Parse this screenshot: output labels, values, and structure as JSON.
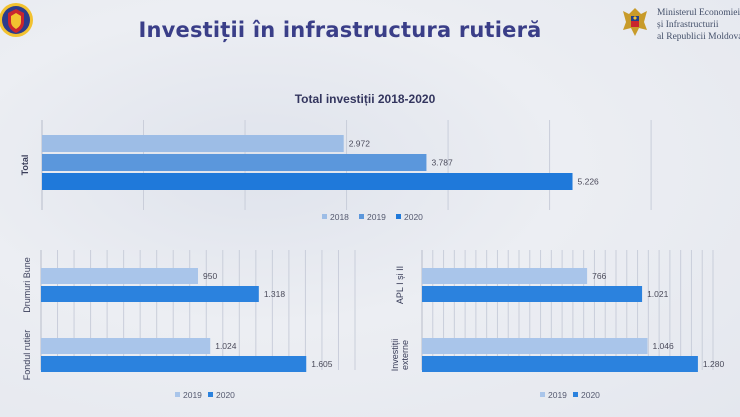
{
  "slide": {
    "title": "Investiții în infrastructura rutieră",
    "ministry_lines": [
      "Ministerul Economiei",
      "și Infrastructurii",
      "al Republicii Moldova"
    ],
    "logo_left": "moldova-police-emblem-icon",
    "logo_right": "moldova-coat-of-arms-icon"
  },
  "colors": {
    "2018": "#9dbde6",
    "2019": "#5b97dc",
    "2020": "#1f79da",
    "small_2019": "#a9c5ea",
    "small_2020": "#2b82de",
    "title": "#3a3e88"
  },
  "chart_data": [
    {
      "type": "bar",
      "orientation": "horizontal",
      "title": "Total investiții 2018-2020",
      "categories": [
        "Total"
      ],
      "series": [
        {
          "name": "2018",
          "values": [
            2.972
          ],
          "label": "2.972"
        },
        {
          "name": "2019",
          "values": [
            3.787
          ],
          "label": "3.787"
        },
        {
          "name": "2020",
          "values": [
            5.226
          ],
          "label": "5.226"
        }
      ],
      "xlim": [
        0,
        6.6
      ],
      "grid": true,
      "legend": "bottom"
    },
    {
      "type": "bar",
      "orientation": "horizontal",
      "title": "",
      "categories": [
        "Drumuri Bune",
        "Fondul rutier"
      ],
      "series": [
        {
          "name": "2019",
          "values": [
            950,
            1024
          ],
          "labels": [
            "950",
            "1.024"
          ]
        },
        {
          "name": "2020",
          "values": [
            1318,
            1605
          ],
          "labels": [
            "1.318",
            "1.605"
          ]
        }
      ],
      "xlim": [
        0,
        1900
      ],
      "grid": true,
      "legend": "bottom"
    },
    {
      "type": "bar",
      "orientation": "horizontal",
      "title": "",
      "categories": [
        "APL I și II",
        "Investiții externe"
      ],
      "category_lines": [
        [
          "APL I și II"
        ],
        [
          "Investiții",
          "externe"
        ]
      ],
      "series": [
        {
          "name": "2019",
          "values": [
            766,
            1046
          ],
          "labels": [
            "766",
            "1.046"
          ]
        },
        {
          "name": "2020",
          "values": [
            1021,
            1280
          ],
          "labels": [
            "1.021",
            "1.280"
          ]
        }
      ],
      "xlim": [
        0,
        1350
      ],
      "grid": true,
      "legend": "bottom"
    }
  ]
}
